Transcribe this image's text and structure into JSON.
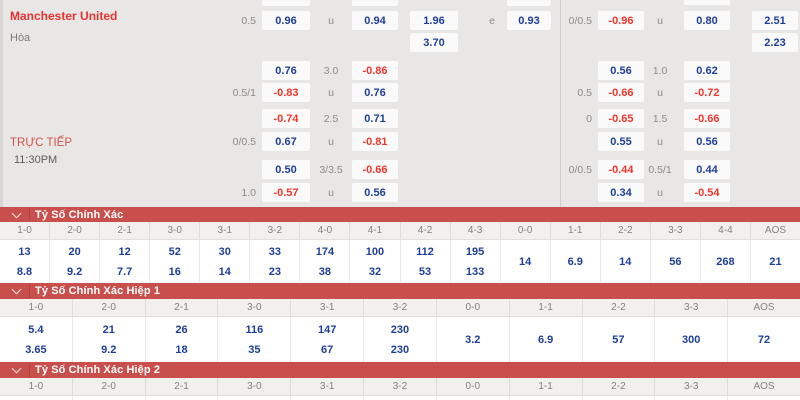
{
  "colors": {
    "banner_red": "#c94f4c",
    "odds_blue": "#1e3f99",
    "odds_red": "#f2362c",
    "team_red": "#e8332e",
    "background": "#e9e7e5"
  },
  "match": {
    "home_team": "Manchester United",
    "draw_label": "Hòa",
    "live_label": "TRỰC TIẾP",
    "time": "11:30PM"
  },
  "odds_grid": {
    "cells": [
      {
        "r": 0,
        "c": "L1",
        "v": "0.5",
        "k": "label"
      },
      {
        "r": 0,
        "c": "LC1",
        "v": "0.96",
        "k": "pos"
      },
      {
        "r": 0,
        "c": "L2",
        "v": "u",
        "k": "label"
      },
      {
        "r": 0,
        "c": "LC2",
        "v": "0.94",
        "k": "pos"
      },
      {
        "r": 0,
        "c": "LC3",
        "v": "1.96",
        "k": "pos"
      },
      {
        "r": 0,
        "c": "L3",
        "v": "e",
        "k": "label"
      },
      {
        "r": 0,
        "c": "LC4",
        "v": "0.93",
        "k": "pos"
      },
      {
        "r": 0,
        "c": "R1",
        "v": "0/0.5",
        "k": "label"
      },
      {
        "r": 0,
        "c": "RC1",
        "v": "-0.96",
        "k": "neg"
      },
      {
        "r": 0,
        "c": "R2",
        "v": "u",
        "k": "label"
      },
      {
        "r": 0,
        "c": "RC2",
        "v": "0.80",
        "k": "pos"
      },
      {
        "r": 0,
        "c": "RC3",
        "v": "2.51",
        "k": "pos"
      },
      {
        "r": 1,
        "c": "LC3",
        "v": "3.70",
        "k": "pos"
      },
      {
        "r": 1,
        "c": "RC3",
        "v": "2.23",
        "k": "pos"
      },
      {
        "r": 2,
        "c": "LC1",
        "v": "0.76",
        "k": "pos"
      },
      {
        "r": 2,
        "c": "L2",
        "v": "3.0",
        "k": "label"
      },
      {
        "r": 2,
        "c": "LC2",
        "v": "-0.86",
        "k": "neg"
      },
      {
        "r": 2,
        "c": "RC1",
        "v": "0.56",
        "k": "pos"
      },
      {
        "r": 2,
        "c": "R2",
        "v": "1.0",
        "k": "label"
      },
      {
        "r": 2,
        "c": "RC2",
        "v": "0.62",
        "k": "pos"
      },
      {
        "r": 3,
        "c": "L1",
        "v": "0.5/1",
        "k": "label"
      },
      {
        "r": 3,
        "c": "LC1",
        "v": "-0.83",
        "k": "neg"
      },
      {
        "r": 3,
        "c": "L2",
        "v": "u",
        "k": "label"
      },
      {
        "r": 3,
        "c": "LC2",
        "v": "0.76",
        "k": "pos"
      },
      {
        "r": 3,
        "c": "R1",
        "v": "0.5",
        "k": "label"
      },
      {
        "r": 3,
        "c": "RC1",
        "v": "-0.66",
        "k": "neg"
      },
      {
        "r": 3,
        "c": "R2",
        "v": "u",
        "k": "label"
      },
      {
        "r": 3,
        "c": "RC2",
        "v": "-0.72",
        "k": "neg"
      },
      {
        "r": 4,
        "c": "LC1",
        "v": "-0.74",
        "k": "neg"
      },
      {
        "r": 4,
        "c": "L2",
        "v": "2.5",
        "k": "label"
      },
      {
        "r": 4,
        "c": "LC2",
        "v": "0.71",
        "k": "pos"
      },
      {
        "r": 4,
        "c": "R1",
        "v": "0",
        "k": "label"
      },
      {
        "r": 4,
        "c": "RC1",
        "v": "-0.65",
        "k": "neg"
      },
      {
        "r": 4,
        "c": "R2",
        "v": "1.5",
        "k": "label"
      },
      {
        "r": 4,
        "c": "RC2",
        "v": "-0.66",
        "k": "neg"
      },
      {
        "r": 5,
        "c": "L1",
        "v": "0/0.5",
        "k": "label"
      },
      {
        "r": 5,
        "c": "LC1",
        "v": "0.67",
        "k": "pos"
      },
      {
        "r": 5,
        "c": "L2",
        "v": "u",
        "k": "label"
      },
      {
        "r": 5,
        "c": "LC2",
        "v": "-0.81",
        "k": "neg"
      },
      {
        "r": 5,
        "c": "RC1",
        "v": "0.55",
        "k": "pos"
      },
      {
        "r": 5,
        "c": "R2",
        "v": "u",
        "k": "label"
      },
      {
        "r": 5,
        "c": "RC2",
        "v": "0.56",
        "k": "pos"
      },
      {
        "r": 6,
        "c": "LC1",
        "v": "0.50",
        "k": "pos"
      },
      {
        "r": 6,
        "c": "L2",
        "v": "3/3.5",
        "k": "label"
      },
      {
        "r": 6,
        "c": "LC2",
        "v": "-0.66",
        "k": "neg"
      },
      {
        "r": 6,
        "c": "R1",
        "v": "0/0.5",
        "k": "label"
      },
      {
        "r": 6,
        "c": "RC1",
        "v": "-0.44",
        "k": "neg"
      },
      {
        "r": 6,
        "c": "R2",
        "v": "0.5/1",
        "k": "label"
      },
      {
        "r": 6,
        "c": "RC2",
        "v": "0.44",
        "k": "pos"
      },
      {
        "r": 7,
        "c": "L1",
        "v": "1.0",
        "k": "label"
      },
      {
        "r": 7,
        "c": "LC1",
        "v": "-0.57",
        "k": "neg"
      },
      {
        "r": 7,
        "c": "L2",
        "v": "u",
        "k": "label"
      },
      {
        "r": 7,
        "c": "LC2",
        "v": "0.56",
        "k": "pos"
      },
      {
        "r": 7,
        "c": "RC1",
        "v": "0.34",
        "k": "pos"
      },
      {
        "r": 7,
        "c": "R2",
        "v": "u",
        "k": "label"
      },
      {
        "r": 7,
        "c": "RC2",
        "v": "-0.54",
        "k": "neg"
      }
    ]
  },
  "score_sections": [
    {
      "title": "Tỷ Số Chính Xác",
      "icon": "chevron-down",
      "columns": [
        "1-0",
        "2-0",
        "2-1",
        "3-0",
        "3-1",
        "3-2",
        "4-0",
        "4-1",
        "4-2",
        "4-3",
        "0-0",
        "1-1",
        "2-2",
        "3-3",
        "4-4",
        "AOS"
      ],
      "values_top": [
        "13",
        "20",
        "12",
        "52",
        "30",
        "33",
        "174",
        "100",
        "112",
        "195",
        "14",
        "6.9",
        "14",
        "56",
        "268",
        "21"
      ],
      "values_bottom": [
        "8.8",
        "9.2",
        "7.7",
        "16",
        "14",
        "23",
        "38",
        "32",
        "53",
        "133",
        "",
        "",
        "",
        "",
        "",
        ""
      ]
    },
    {
      "title": "Tỷ Số Chính Xác Hiệp 1",
      "icon": "chevron-down",
      "columns": [
        "1-0",
        "2-0",
        "2-1",
        "3-0",
        "3-1",
        "3-2",
        "0-0",
        "1-1",
        "2-2",
        "3-3",
        "AOS"
      ],
      "values_top": [
        "5.4",
        "21",
        "26",
        "116",
        "147",
        "230",
        "3.2",
        "6.9",
        "57",
        "300",
        "72"
      ],
      "values_bottom": [
        "3.65",
        "9.2",
        "18",
        "35",
        "67",
        "230",
        "",
        "",
        "",
        "",
        ""
      ]
    },
    {
      "title": "Tỷ Số Chính Xác Hiệp 2",
      "icon": "chevron-down",
      "columns": [
        "1-0",
        "2-0",
        "2-1",
        "3-0",
        "3-1",
        "3-2",
        "0-0",
        "1-1",
        "2-2",
        "3-3",
        "AOS"
      ],
      "values_top": [],
      "values_bottom": []
    }
  ]
}
